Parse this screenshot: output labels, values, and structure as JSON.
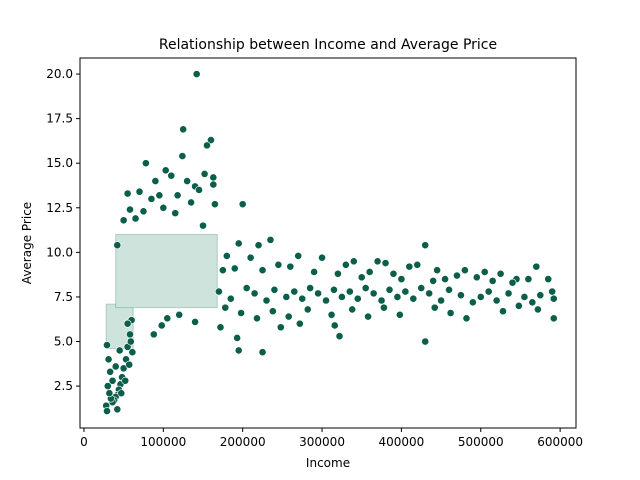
{
  "chart_data": {
    "type": "scatter",
    "title": "Relationship between Income and Average Price",
    "xlabel": "Income",
    "ylabel": "Average Price",
    "xlim": [
      -5000,
      620000
    ],
    "ylim": [
      0.15,
      20.9
    ],
    "x_ticks": [
      0,
      100000,
      200000,
      300000,
      400000,
      500000,
      600000
    ],
    "x_tick_labels": [
      "0",
      "100000",
      "200000",
      "300000",
      "400000",
      "500000",
      "600000"
    ],
    "y_ticks": [
      2.5,
      5.0,
      7.5,
      10.0,
      12.5,
      15.0,
      17.5,
      20.0
    ],
    "y_tick_labels": [
      "2.5",
      "5.0",
      "7.5",
      "10.0",
      "12.5",
      "15.0",
      "17.5",
      "20.0"
    ],
    "grid": false,
    "marker_color": "#0b5e4a",
    "marker_edge_color": "#ffffff",
    "points": [
      [
        142000,
        20.0
      ],
      [
        125000,
        16.9
      ],
      [
        160000,
        16.3
      ],
      [
        155000,
        16.0
      ],
      [
        124000,
        15.4
      ],
      [
        78000,
        15.0
      ],
      [
        103000,
        14.6
      ],
      [
        110000,
        14.3
      ],
      [
        152000,
        14.4
      ],
      [
        163000,
        14.2
      ],
      [
        163000,
        13.8
      ],
      [
        130000,
        14.0
      ],
      [
        140000,
        13.7
      ],
      [
        90000,
        14.0
      ],
      [
        70000,
        13.4
      ],
      [
        55000,
        13.3
      ],
      [
        85000,
        13.0
      ],
      [
        95000,
        13.2
      ],
      [
        118000,
        13.2
      ],
      [
        145000,
        13.5
      ],
      [
        200000,
        12.7
      ],
      [
        58000,
        12.4
      ],
      [
        75000,
        12.3
      ],
      [
        100000,
        12.5
      ],
      [
        135000,
        12.8
      ],
      [
        165000,
        12.7
      ],
      [
        50000,
        11.8
      ],
      [
        65000,
        11.9
      ],
      [
        115000,
        12.2
      ],
      [
        150000,
        11.5
      ],
      [
        235000,
        10.7
      ],
      [
        195000,
        10.5
      ],
      [
        220000,
        10.4
      ],
      [
        430000,
        10.4
      ],
      [
        42000,
        10.4
      ],
      [
        210000,
        9.7
      ],
      [
        180000,
        9.8
      ],
      [
        270000,
        9.8
      ],
      [
        300000,
        9.7
      ],
      [
        370000,
        9.5
      ],
      [
        330000,
        9.3
      ],
      [
        340000,
        9.5
      ],
      [
        380000,
        9.4
      ],
      [
        410000,
        9.2
      ],
      [
        420000,
        9.3
      ],
      [
        445000,
        9.0
      ],
      [
        480000,
        9.0
      ],
      [
        505000,
        8.9
      ],
      [
        525000,
        8.8
      ],
      [
        545000,
        8.5
      ],
      [
        570000,
        9.2
      ],
      [
        585000,
        8.5
      ],
      [
        560000,
        8.5
      ],
      [
        540000,
        8.3
      ],
      [
        515000,
        8.4
      ],
      [
        495000,
        8.6
      ],
      [
        470000,
        8.7
      ],
      [
        455000,
        8.5
      ],
      [
        440000,
        8.4
      ],
      [
        400000,
        8.5
      ],
      [
        390000,
        8.8
      ],
      [
        360000,
        8.9
      ],
      [
        350000,
        8.6
      ],
      [
        320000,
        8.8
      ],
      [
        290000,
        8.9
      ],
      [
        260000,
        9.2
      ],
      [
        245000,
        9.3
      ],
      [
        225000,
        9.0
      ],
      [
        190000,
        9.1
      ],
      [
        175000,
        9.0
      ],
      [
        590000,
        7.8
      ],
      [
        592000,
        7.4
      ],
      [
        575000,
        7.6
      ],
      [
        565000,
        7.2
      ],
      [
        555000,
        7.5
      ],
      [
        535000,
        7.7
      ],
      [
        520000,
        7.3
      ],
      [
        510000,
        7.8
      ],
      [
        500000,
        7.5
      ],
      [
        490000,
        7.2
      ],
      [
        475000,
        7.6
      ],
      [
        460000,
        7.9
      ],
      [
        450000,
        7.3
      ],
      [
        435000,
        7.7
      ],
      [
        425000,
        8.0
      ],
      [
        415000,
        7.4
      ],
      [
        405000,
        7.8
      ],
      [
        395000,
        7.5
      ],
      [
        385000,
        7.9
      ],
      [
        375000,
        7.3
      ],
      [
        365000,
        7.7
      ],
      [
        355000,
        8.0
      ],
      [
        345000,
        7.4
      ],
      [
        335000,
        7.8
      ],
      [
        325000,
        7.5
      ],
      [
        315000,
        7.9
      ],
      [
        305000,
        7.3
      ],
      [
        295000,
        7.7
      ],
      [
        285000,
        8.0
      ],
      [
        275000,
        7.4
      ],
      [
        265000,
        7.8
      ],
      [
        255000,
        7.5
      ],
      [
        240000,
        7.9
      ],
      [
        230000,
        7.3
      ],
      [
        215000,
        7.7
      ],
      [
        205000,
        8.0
      ],
      [
        185000,
        7.4
      ],
      [
        170000,
        7.8
      ],
      [
        592000,
        6.3
      ],
      [
        572000,
        6.8
      ],
      [
        548000,
        7.0
      ],
      [
        528000,
        6.7
      ],
      [
        482000,
        6.3
      ],
      [
        462000,
        6.6
      ],
      [
        442000,
        6.9
      ],
      [
        398000,
        6.5
      ],
      [
        378000,
        6.9
      ],
      [
        358000,
        6.4
      ],
      [
        338000,
        6.8
      ],
      [
        312000,
        6.5
      ],
      [
        282000,
        6.8
      ],
      [
        258000,
        6.4
      ],
      [
        238000,
        6.7
      ],
      [
        218000,
        6.3
      ],
      [
        198000,
        6.6
      ],
      [
        178000,
        6.9
      ],
      [
        430000,
        5.0
      ],
      [
        322000,
        5.3
      ],
      [
        316000,
        5.9
      ],
      [
        272000,
        6.0
      ],
      [
        248000,
        5.8
      ],
      [
        225000,
        4.4
      ],
      [
        195000,
        4.5
      ],
      [
        193000,
        5.2
      ],
      [
        172000,
        5.8
      ],
      [
        98000,
        5.9
      ],
      [
        88000,
        5.4
      ],
      [
        105000,
        6.3
      ],
      [
        140000,
        6.1
      ],
      [
        120000,
        6.5
      ],
      [
        60000,
        6.2
      ],
      [
        58000,
        5.4
      ],
      [
        55000,
        4.7
      ],
      [
        53000,
        4.0
      ],
      [
        50000,
        3.5
      ],
      [
        48000,
        3.0
      ],
      [
        46000,
        2.6
      ],
      [
        44000,
        2.3
      ],
      [
        42000,
        2.0
      ],
      [
        40000,
        1.9
      ],
      [
        38000,
        1.7
      ],
      [
        36000,
        1.6
      ],
      [
        34000,
        1.8
      ],
      [
        32000,
        2.1
      ],
      [
        30000,
        2.5
      ],
      [
        28000,
        1.4
      ],
      [
        29000,
        1.1
      ],
      [
        42000,
        1.2
      ],
      [
        47000,
        2.1
      ],
      [
        52000,
        2.8
      ],
      [
        57000,
        3.7
      ],
      [
        59000,
        5.0
      ],
      [
        61000,
        4.4
      ],
      [
        55000,
        6.0
      ],
      [
        45000,
        4.5
      ],
      [
        40000,
        3.6
      ],
      [
        36000,
        2.8
      ],
      [
        33000,
        3.3
      ],
      [
        31000,
        4.0
      ],
      [
        29000,
        4.8
      ]
    ]
  }
}
